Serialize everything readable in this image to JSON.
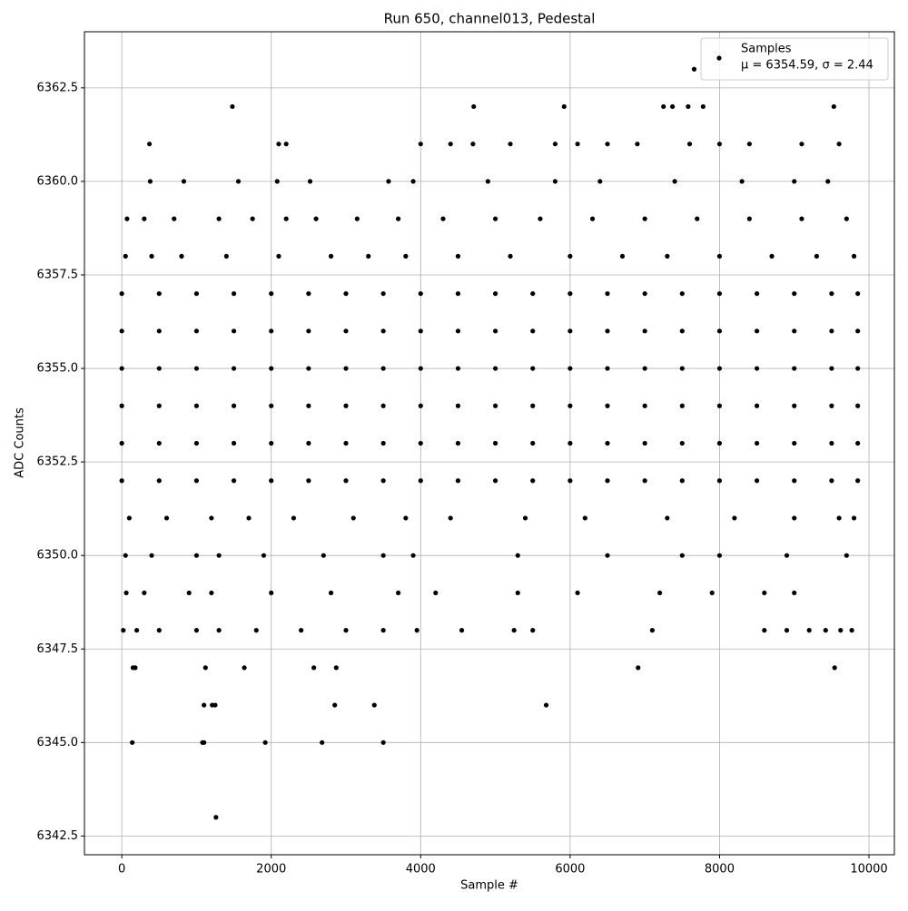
{
  "chart_data": {
    "type": "scatter",
    "title": "Run 650, channel013, Pedestal",
    "x_label": "Sample #",
    "y_label": "ADC Counts",
    "xlim": [
      -500,
      10340
    ],
    "ylim": [
      6342,
      6364
    ],
    "xticks": [
      0,
      2000,
      4000,
      6000,
      8000,
      10000
    ],
    "yticks": [
      6342.5,
      {
        "value": 6345,
        "label": "6345.0"
      },
      6347.5,
      {
        "value": 6350,
        "label": "6350.0"
      },
      6352.5,
      {
        "value": 6355,
        "label": "6355.0"
      },
      6357.5,
      {
        "value": 6360,
        "label": "6360.0"
      },
      6362.5
    ],
    "grid": true,
    "legend": "upper right",
    "legend_note": "μ = 6354.59, σ = 2.44",
    "series": [
      {
        "name": "Samples",
        "color": "#000000",
        "x": [
          0,
          500,
          1000,
          1500,
          2000,
          2500,
          3000,
          3500,
          4000,
          4500,
          5000,
          5500,
          6000,
          6500,
          7000,
          7500,
          8000,
          8500,
          9000,
          9500,
          9850,
          0,
          500,
          1000,
          1500,
          2000,
          2500,
          3000,
          3500,
          4000,
          4500,
          5000,
          5500,
          6000,
          6500,
          7000,
          7500,
          8000,
          8500,
          9000,
          9500,
          9850,
          0,
          500,
          1000,
          1500,
          2000,
          2500,
          3000,
          3500,
          4000,
          4500,
          5000,
          5500,
          6000,
          6500,
          7000,
          7500,
          8000,
          8500,
          9000,
          9500,
          9850,
          0,
          500,
          1000,
          1500,
          2000,
          2500,
          3000,
          3500,
          4000,
          4500,
          5000,
          5500,
          6000,
          6500,
          7000,
          7500,
          8000,
          8500,
          9000,
          9500,
          9850,
          0,
          500,
          1000,
          1500,
          2000,
          2500,
          3000,
          3500,
          4000,
          4500,
          5000,
          5500,
          6000,
          6500,
          7000,
          7500,
          8000,
          8500,
          9000,
          9500,
          9850,
          0,
          500,
          1000,
          1500,
          2000,
          2500,
          3000,
          3500,
          4000,
          4500,
          5000,
          5500,
          6000,
          6500,
          7000,
          7500,
          8000,
          8500,
          9000,
          9500,
          9850,
          100,
          600,
          1200,
          1700,
          2300,
          3100,
          3800,
          4400,
          5400,
          6200,
          7300,
          8200,
          9000,
          9600,
          9800,
          50,
          400,
          1000,
          1300,
          1900,
          2700,
          3500,
          3900,
          5300,
          6500,
          7500,
          8000,
          8900,
          9700,
          60,
          300,
          900,
          1200,
          2000,
          2800,
          3700,
          4200,
          5300,
          6100,
          7200,
          7900,
          8600,
          9000,
          20,
          200,
          500,
          1000,
          1300,
          1800,
          2400,
          3000,
          3500,
          3950,
          4550,
          5250,
          5500,
          7100,
          8600,
          8900,
          9200,
          9420,
          9620,
          9770,
          50,
          400,
          800,
          1400,
          2100,
          2800,
          3300,
          3800,
          4500,
          5200,
          6000,
          6700,
          7300,
          8000,
          8700,
          9300,
          9800,
          70,
          300,
          700,
          1300,
          1750,
          2200,
          2600,
          3150,
          3700,
          4300,
          5000,
          5600,
          6300,
          7000,
          7700,
          8400,
          9100,
          9700,
          380,
          830,
          1560,
          2080,
          2520,
          3570,
          3900,
          4900,
          5800,
          6400,
          7400,
          8300,
          9000,
          9450,
          370,
          2100,
          2200,
          4000,
          4400,
          4700,
          5200,
          5800,
          6100,
          6500,
          6900,
          7600,
          8000,
          8400,
          9100,
          9600,
          1260,
          140,
          1080,
          1100,
          1920,
          2680,
          3500,
          1480,
          4710,
          5920,
          7660,
          9530,
          7250,
          7370,
          7580,
          7780,
          6910,
          9540,
          150,
          180,
          1120,
          1640,
          2570,
          2870,
          1100,
          1210,
          1250,
          2850,
          3380,
          5680
        ],
        "values": [
          6352,
          6352,
          6352,
          6352,
          6352,
          6352,
          6352,
          6352,
          6352,
          6352,
          6352,
          6352,
          6352,
          6352,
          6352,
          6352,
          6352,
          6352,
          6352,
          6352,
          6352,
          6353,
          6353,
          6353,
          6353,
          6353,
          6353,
          6353,
          6353,
          6353,
          6353,
          6353,
          6353,
          6353,
          6353,
          6353,
          6353,
          6353,
          6353,
          6353,
          6353,
          6353,
          6354,
          6354,
          6354,
          6354,
          6354,
          6354,
          6354,
          6354,
          6354,
          6354,
          6354,
          6354,
          6354,
          6354,
          6354,
          6354,
          6354,
          6354,
          6354,
          6354,
          6354,
          6355,
          6355,
          6355,
          6355,
          6355,
          6355,
          6355,
          6355,
          6355,
          6355,
          6355,
          6355,
          6355,
          6355,
          6355,
          6355,
          6355,
          6355,
          6355,
          6355,
          6355,
          6356,
          6356,
          6356,
          6356,
          6356,
          6356,
          6356,
          6356,
          6356,
          6356,
          6356,
          6356,
          6356,
          6356,
          6356,
          6356,
          6356,
          6356,
          6356,
          6356,
          6356,
          6357,
          6357,
          6357,
          6357,
          6357,
          6357,
          6357,
          6357,
          6357,
          6357,
          6357,
          6357,
          6357,
          6357,
          6357,
          6357,
          6357,
          6357,
          6357,
          6357,
          6357,
          6351,
          6351,
          6351,
          6351,
          6351,
          6351,
          6351,
          6351,
          6351,
          6351,
          6351,
          6351,
          6351,
          6351,
          6351,
          6350,
          6350,
          6350,
          6350,
          6350,
          6350,
          6350,
          6350,
          6350,
          6350,
          6350,
          6350,
          6350,
          6350,
          6349,
          6349,
          6349,
          6349,
          6349,
          6349,
          6349,
          6349,
          6349,
          6349,
          6349,
          6349,
          6349,
          6349,
          6348,
          6348,
          6348,
          6348,
          6348,
          6348,
          6348,
          6348,
          6348,
          6348,
          6348,
          6348,
          6348,
          6348,
          6348,
          6348,
          6348,
          6348,
          6348,
          6348,
          6358,
          6358,
          6358,
          6358,
          6358,
          6358,
          6358,
          6358,
          6358,
          6358,
          6358,
          6358,
          6358,
          6358,
          6358,
          6358,
          6358,
          6359,
          6359,
          6359,
          6359,
          6359,
          6359,
          6359,
          6359,
          6359,
          6359,
          6359,
          6359,
          6359,
          6359,
          6359,
          6359,
          6359,
          6359,
          6360,
          6360,
          6360,
          6360,
          6360,
          6360,
          6360,
          6360,
          6360,
          6360,
          6360,
          6360,
          6360,
          6360,
          6361,
          6361,
          6361,
          6361,
          6361,
          6361,
          6361,
          6361,
          6361,
          6361,
          6361,
          6361,
          6361,
          6361,
          6361,
          6361,
          6343,
          6345,
          6345,
          6345,
          6345,
          6345,
          6345,
          6362,
          6362,
          6362,
          6363,
          6362,
          6362,
          6362,
          6362,
          6362,
          6347,
          6347,
          6347,
          6347,
          6347,
          6347,
          6347,
          6347,
          6346,
          6346,
          6346,
          6346,
          6346,
          6346
        ]
      }
    ]
  }
}
